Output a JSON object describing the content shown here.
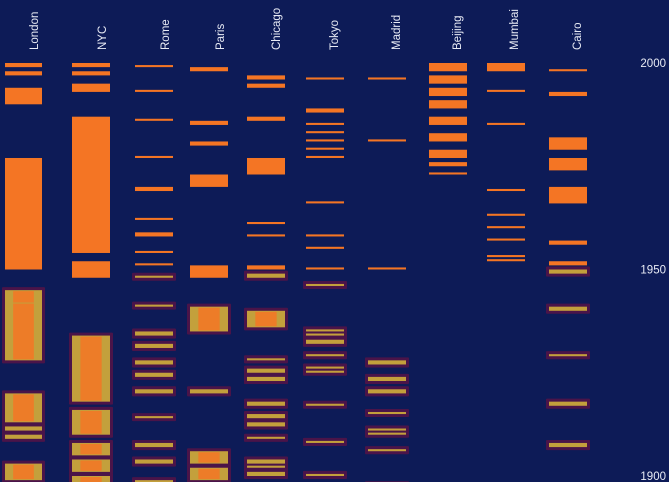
{
  "chart_data": {
    "type": "timeline-strips",
    "title": "",
    "xlabel": "",
    "ylabel": "",
    "y_axis": {
      "ticks": [
        2000,
        1950,
        1900
      ],
      "range": [
        1896,
        2004
      ],
      "direction": "descending-down"
    },
    "colors": {
      "background": "#0d1b57",
      "recent": "#f47524",
      "older": "#c3a03c",
      "older_halo": "#4a1449"
    },
    "older_before_year": 1950,
    "categories": [
      "London",
      "NYC",
      "Rome",
      "Paris",
      "Chicago",
      "Tokyo",
      "Madrid",
      "Beijing",
      "Mumbai",
      "Cairo"
    ],
    "series": [
      {
        "name": "London",
        "spans": [
          [
            1999,
            2000
          ],
          [
            1997,
            1998
          ],
          [
            1990,
            1994
          ],
          [
            1950,
            1977
          ],
          [
            1937,
            1945
          ],
          [
            1928,
            1942
          ],
          [
            1913,
            1920
          ],
          [
            1911,
            1912
          ],
          [
            1909,
            1910
          ],
          [
            1899,
            1903
          ],
          [
            1896,
            1897
          ]
        ]
      },
      {
        "name": "NYC",
        "spans": [
          [
            1999,
            2000
          ],
          [
            1997,
            1998
          ],
          [
            1993,
            1995
          ],
          [
            1954,
            1987
          ],
          [
            1948,
            1952
          ],
          [
            1918,
            1934
          ],
          [
            1910,
            1916
          ],
          [
            1905,
            1908
          ],
          [
            1901,
            1904
          ],
          [
            1898,
            1900
          ]
        ]
      },
      {
        "name": "Rome",
        "spans": [
          [
            1999,
            1999.5
          ],
          [
            1993,
            1993.5
          ],
          [
            1986,
            1986.5
          ],
          [
            1977,
            1977.5
          ],
          [
            1969,
            1970
          ],
          [
            1962,
            1962.5
          ],
          [
            1958,
            1959
          ],
          [
            1954,
            1954.5
          ],
          [
            1951,
            1951.5
          ],
          [
            1948,
            1948.5
          ],
          [
            1941,
            1941.5
          ],
          [
            1934,
            1935
          ],
          [
            1931,
            1932
          ],
          [
            1927,
            1928
          ],
          [
            1924,
            1925
          ],
          [
            1920,
            1921
          ],
          [
            1914,
            1914.5
          ],
          [
            1907,
            1908
          ],
          [
            1903,
            1904
          ],
          [
            1898,
            1899
          ]
        ]
      },
      {
        "name": "Paris",
        "spans": [
          [
            1998,
            1999
          ],
          [
            1985,
            1986
          ],
          [
            1980,
            1981
          ],
          [
            1970,
            1973
          ],
          [
            1948,
            1951
          ],
          [
            1935,
            1941
          ],
          [
            1920,
            1921
          ],
          [
            1903,
            1906
          ],
          [
            1899,
            1902
          ]
        ]
      },
      {
        "name": "Chicago",
        "spans": [
          [
            1996,
            1997
          ],
          [
            1994,
            1995
          ],
          [
            1986,
            1987
          ],
          [
            1973,
            1977
          ],
          [
            1961,
            1961.5
          ],
          [
            1958,
            1958.5
          ],
          [
            1950,
            1951
          ],
          [
            1948,
            1949
          ],
          [
            1936,
            1940
          ],
          [
            1928,
            1928.5
          ],
          [
            1925,
            1926
          ],
          [
            1923,
            1924
          ],
          [
            1923,
            1923.5
          ],
          [
            1917,
            1918
          ],
          [
            1914,
            1915
          ],
          [
            1912,
            1913
          ],
          [
            1909,
            1909.5
          ],
          [
            1903,
            1904
          ],
          [
            1902,
            1902.5
          ],
          [
            1900,
            1901
          ],
          [
            1897,
            1897.5
          ]
        ]
      },
      {
        "name": "Tokyo",
        "spans": [
          [
            1996,
            1996.5
          ],
          [
            1988,
            1989
          ],
          [
            1985,
            1985.5
          ],
          [
            1983,
            1983.5
          ],
          [
            1981,
            1981.5
          ],
          [
            1979,
            1979.5
          ],
          [
            1977,
            1977.5
          ],
          [
            1966,
            1966.5
          ],
          [
            1958,
            1958.5
          ],
          [
            1955,
            1955.5
          ],
          [
            1950,
            1950.5
          ],
          [
            1946,
            1946.5
          ],
          [
            1935,
            1935.5
          ],
          [
            1934,
            1934.5
          ],
          [
            1932,
            1933
          ],
          [
            1929,
            1929.5
          ],
          [
            1926,
            1926.5
          ],
          [
            1925,
            1925.5
          ],
          [
            1917,
            1917.5
          ],
          [
            1908,
            1908.5
          ],
          [
            1900,
            1900.5
          ]
        ]
      },
      {
        "name": "Madrid",
        "spans": [
          [
            1996,
            1996.5
          ],
          [
            1981,
            1981.5
          ],
          [
            1950,
            1950.5
          ],
          [
            1927,
            1928
          ],
          [
            1923,
            1924
          ],
          [
            1920,
            1921
          ],
          [
            1915,
            1915.5
          ],
          [
            1911,
            1911.5
          ],
          [
            1910,
            1910.5
          ],
          [
            1906,
            1906.5
          ],
          [
            1897,
            1898
          ]
        ]
      },
      {
        "name": "Beijing",
        "spans": [
          [
            1998,
            2000
          ],
          [
            1995,
            1997
          ],
          [
            1992,
            1994
          ],
          [
            1989,
            1991
          ],
          [
            1985,
            1987
          ],
          [
            1981,
            1983
          ],
          [
            1977,
            1979
          ],
          [
            1975,
            1976
          ],
          [
            1973,
            1973.5
          ]
        ]
      },
      {
        "name": "Mumbai",
        "spans": [
          [
            1998,
            2000
          ],
          [
            1993,
            1993.5
          ],
          [
            1985,
            1985.5
          ],
          [
            1969,
            1969.5
          ],
          [
            1963,
            1963.5
          ],
          [
            1960,
            1960.5
          ],
          [
            1957,
            1957.5
          ],
          [
            1953,
            1953.5
          ],
          [
            1952,
            1952.5
          ]
        ]
      },
      {
        "name": "Cairo",
        "spans": [
          [
            1998,
            1998.5
          ],
          [
            1992,
            1993
          ],
          [
            1979,
            1982
          ],
          [
            1974,
            1977
          ],
          [
            1966,
            1970
          ],
          [
            1956,
            1957
          ],
          [
            1951,
            1952
          ],
          [
            1949,
            1950
          ],
          [
            1940,
            1941
          ],
          [
            1929,
            1929.5
          ],
          [
            1917,
            1918
          ],
          [
            1907,
            1908
          ],
          [
            1896,
            1897
          ]
        ]
      }
    ]
  }
}
